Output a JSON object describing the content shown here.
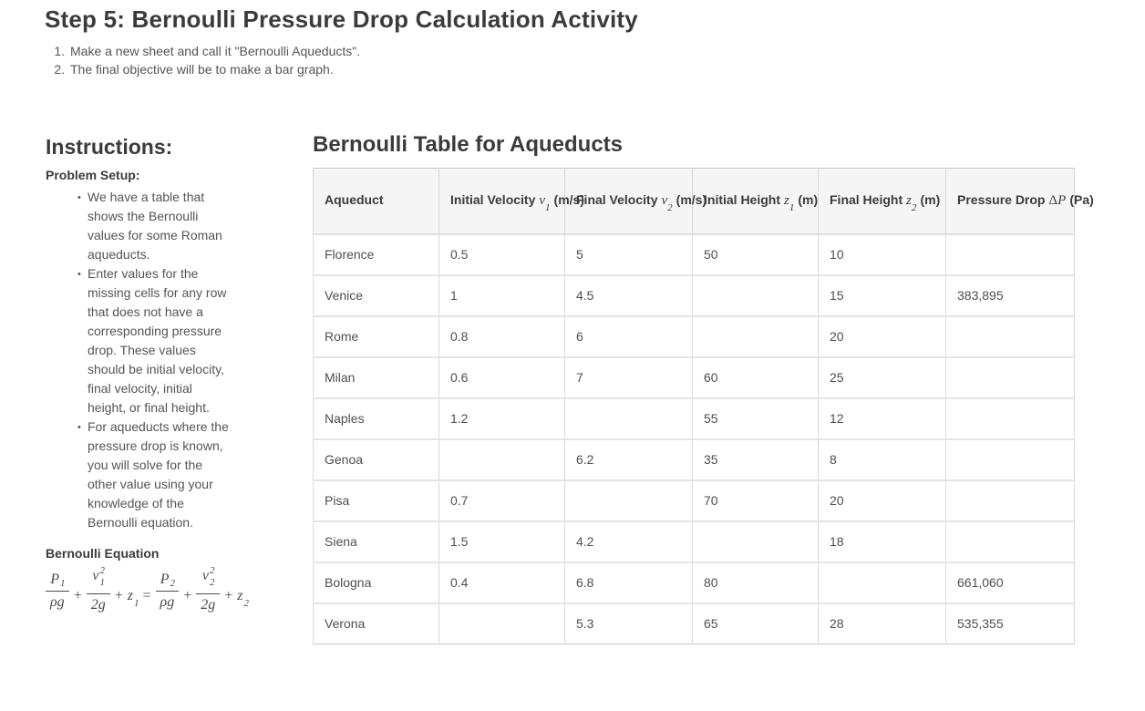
{
  "page": {
    "title": "Step 5: Bernoulli Pressure Drop Calculation Activity",
    "steps": [
      "Make a new sheet and call it \"Bernoulli Aqueducts\".",
      "The final objective will be to make a bar graph."
    ]
  },
  "instructions": {
    "heading": "Instructions:",
    "subheading": "Problem Setup:",
    "bullets": [
      "We have a table that shows the Bernoulli values for some Roman aqueducts.",
      "Enter values for the missing cells for any row that does not have a corresponding pressure drop. These values should be initial velocity, final velocity, initial height, or final height.",
      "For aqueducts where the pressure drop is known, you will solve for the other value using your knowledge of the Bernoulli equation."
    ]
  },
  "equation": {
    "heading": "Bernoulli Equation",
    "plus": "+",
    "equals": "=",
    "f1": {
      "num": "P",
      "num_sub": "1",
      "den": "ρg"
    },
    "f2": {
      "num": "v",
      "num_sup": "2",
      "num_sub": "1",
      "den": "2g"
    },
    "z1": {
      "base": "z",
      "sub": "1"
    },
    "f3": {
      "num": "P",
      "num_sub": "2",
      "den": "ρg"
    },
    "f4": {
      "num": "v",
      "num_sup": "2",
      "num_sub": "2",
      "den": "2g"
    },
    "z2": {
      "base": "z",
      "sub": "2"
    }
  },
  "table": {
    "title": "Bernoulli Table for Aqueducts",
    "columns": [
      {
        "label": "Aqueduct",
        "prefix": "",
        "var": "",
        "sub": "",
        "unit": ""
      },
      {
        "label": "Initial Velocity",
        "prefix": "",
        "var": "v",
        "sub": "1",
        "unit": "(m/s)"
      },
      {
        "label": "Final Velocity",
        "prefix": "",
        "var": "v",
        "sub": "2",
        "unit": "(m/s)"
      },
      {
        "label": "Initial Height",
        "prefix": "",
        "var": "z",
        "sub": "1",
        "unit": "(m)"
      },
      {
        "label": "Final Height",
        "prefix": "",
        "var": "z",
        "sub": "2",
        "unit": "(m)"
      },
      {
        "label": "Pressure Drop",
        "prefix": "Δ",
        "var": "P",
        "sub": "",
        "unit": "(Pa)"
      }
    ],
    "rows": [
      {
        "aqueduct": "Florence",
        "v1": "0.5",
        "v2": "5",
        "z1": "50",
        "z2": "10",
        "dp": ""
      },
      {
        "aqueduct": "Venice",
        "v1": "1",
        "v2": "4.5",
        "z1": "",
        "z2": "15",
        "dp": "383,895"
      },
      {
        "aqueduct": "Rome",
        "v1": "0.8",
        "v2": "6",
        "z1": "",
        "z2": "20",
        "dp": ""
      },
      {
        "aqueduct": "Milan",
        "v1": "0.6",
        "v2": "7",
        "z1": "60",
        "z2": "25",
        "dp": ""
      },
      {
        "aqueduct": "Naples",
        "v1": "1.2",
        "v2": "",
        "z1": "55",
        "z2": "12",
        "dp": ""
      },
      {
        "aqueduct": "Genoa",
        "v1": "",
        "v2": "6.2",
        "z1": "35",
        "z2": "8",
        "dp": ""
      },
      {
        "aqueduct": "Pisa",
        "v1": "0.7",
        "v2": "",
        "z1": "70",
        "z2": "20",
        "dp": ""
      },
      {
        "aqueduct": "Siena",
        "v1": "1.5",
        "v2": "4.2",
        "z1": "",
        "z2": "18",
        "dp": ""
      },
      {
        "aqueduct": "Bologna",
        "v1": "0.4",
        "v2": "6.8",
        "z1": "80",
        "z2": "",
        "dp": "661,060"
      },
      {
        "aqueduct": "Verona",
        "v1": "",
        "v2": "5.3",
        "z1": "65",
        "z2": "28",
        "dp": "535,355"
      }
    ]
  },
  "colors": {
    "heading_text": "#3b3b3b",
    "body_text": "#555555",
    "table_header_bg": "#f5f5f5",
    "table_border": "#d6d6d6"
  }
}
